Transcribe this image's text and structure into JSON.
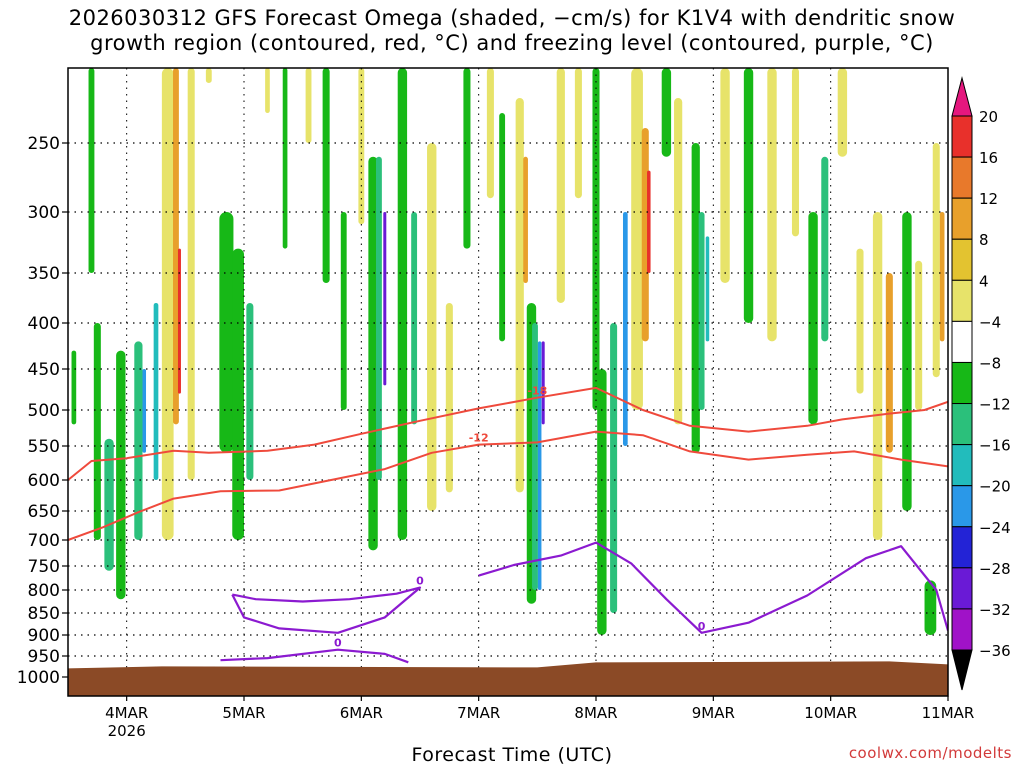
{
  "title_line1": "2026030312 GFS Forecast Omega (shaded, −cm/s) for K1V4 with dendritic snow",
  "title_line2": "growth region (contoured, red, °C) and freezing level (contoured, purple, °C)",
  "x_axis_label": "Forecast Time (UTC)",
  "credit": "coolwx.com/modelts",
  "chart_data": {
    "type": "heatmap",
    "variable": "Omega (shaded, −cm/s)",
    "station": "K1V4",
    "init": "2026030312",
    "x_ticks": [
      "4MAR",
      "5MAR",
      "6MAR",
      "7MAR",
      "8MAR",
      "9MAR",
      "10MAR",
      "11MAR"
    ],
    "x_year_label": "2026",
    "x_range_days": [
      3.5,
      11.0
    ],
    "y_ticks": [
      250,
      300,
      350,
      400,
      450,
      500,
      550,
      600,
      650,
      700,
      750,
      800,
      850,
      900,
      950,
      1000
    ],
    "y_range_hpa": [
      200,
      1000
    ],
    "colorbar_levels": [
      "20",
      "16",
      "12",
      "8",
      "4",
      "−4",
      "−8",
      "−12",
      "−16",
      "−20",
      "−24",
      "−28",
      "−32",
      "−36"
    ],
    "colorbar_colors": [
      "#e5177e",
      "#e8302b",
      "#e8792b",
      "#e8a02b",
      "#e3c330",
      "#e7e36a",
      "#ffffff",
      "#17b817",
      "#2bc07b",
      "#22bcbc",
      "#2a98e8",
      "#2323d6",
      "#6a1ad6",
      "#a012c8",
      "#a6a6a6",
      "#000000"
    ],
    "contours_red": [
      {
        "label": "-18",
        "points": [
          [
            3.5,
            600
          ],
          [
            3.7,
            572
          ],
          [
            4.0,
            568
          ],
          [
            4.4,
            557
          ],
          [
            4.7,
            560
          ],
          [
            5.2,
            557
          ],
          [
            5.6,
            548
          ],
          [
            6.0,
            533
          ],
          [
            6.5,
            515
          ],
          [
            7.0,
            498
          ],
          [
            7.5,
            485
          ],
          [
            8.0,
            473
          ],
          [
            8.4,
            500
          ],
          [
            8.8,
            522
          ],
          [
            9.3,
            530
          ],
          [
            9.8,
            522
          ],
          [
            10.1,
            513
          ],
          [
            10.5,
            505
          ],
          [
            10.8,
            500
          ],
          [
            11.0,
            490
          ]
        ]
      },
      {
        "label": "-12",
        "points": [
          [
            3.5,
            700
          ],
          [
            3.8,
            678
          ],
          [
            4.1,
            652
          ],
          [
            4.4,
            630
          ],
          [
            4.8,
            618
          ],
          [
            5.3,
            617
          ],
          [
            5.8,
            598
          ],
          [
            6.2,
            584
          ],
          [
            6.6,
            560
          ],
          [
            7.0,
            548
          ],
          [
            7.5,
            545
          ],
          [
            8.0,
            530
          ],
          [
            8.4,
            535
          ],
          [
            8.8,
            558
          ],
          [
            9.3,
            570
          ],
          [
            9.8,
            563
          ],
          [
            10.2,
            558
          ],
          [
            10.6,
            570
          ],
          [
            11.0,
            580
          ]
        ]
      }
    ],
    "contours_purple": [
      {
        "label": "0",
        "points": [
          [
            4.9,
            810
          ],
          [
            5.1,
            820
          ],
          [
            5.5,
            825
          ],
          [
            5.9,
            820
          ],
          [
            6.3,
            808
          ],
          [
            6.5,
            795
          ],
          [
            6.2,
            860
          ],
          [
            5.8,
            895
          ],
          [
            5.3,
            885
          ],
          [
            5.0,
            860
          ],
          [
            4.9,
            810
          ]
        ]
      },
      {
        "label": "0",
        "points": [
          [
            7.0,
            770
          ],
          [
            7.3,
            748
          ],
          [
            7.7,
            730
          ],
          [
            8.0,
            705
          ],
          [
            8.3,
            745
          ],
          [
            8.6,
            820
          ],
          [
            8.9,
            895
          ],
          [
            9.3,
            872
          ],
          [
            9.8,
            812
          ],
          [
            10.3,
            735
          ],
          [
            10.6,
            712
          ],
          [
            10.9,
            800
          ],
          [
            11.0,
            890
          ]
        ]
      },
      {
        "label": "0",
        "points": [
          [
            4.8,
            960
          ],
          [
            5.2,
            955
          ],
          [
            5.8,
            935
          ],
          [
            6.2,
            945
          ],
          [
            6.4,
            965
          ]
        ]
      }
    ],
    "surface_pressure_hpa": 970
  }
}
